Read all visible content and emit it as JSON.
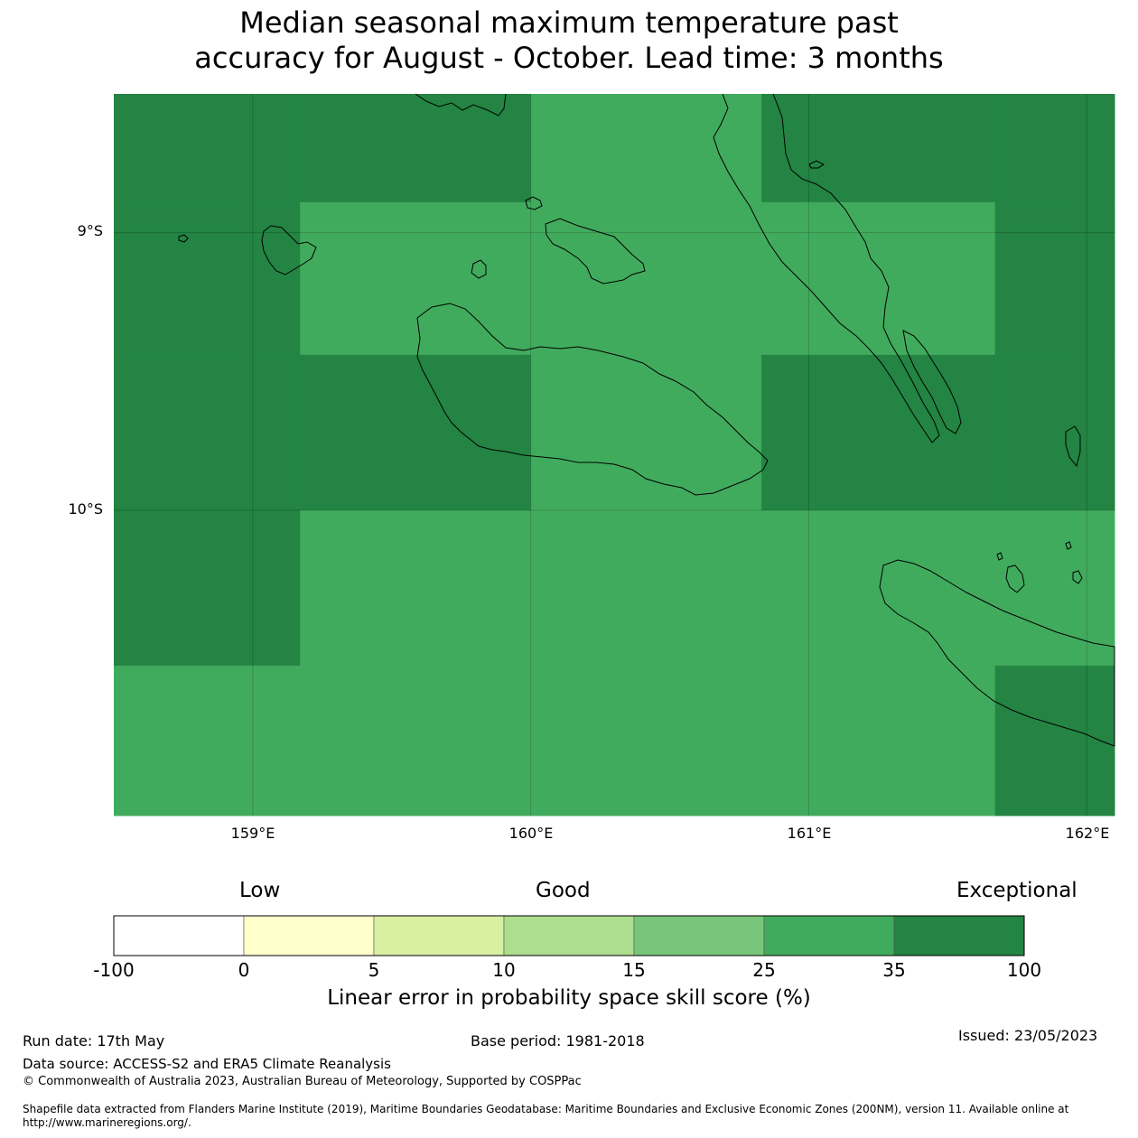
{
  "title_line1": "Median seasonal maximum temperature past",
  "title_line2": "accuracy for August - October. Lead time: 3 months",
  "map": {
    "lat_labels": [
      "9°S",
      "10°S"
    ],
    "lon_labels": [
      "159°E",
      "160°E",
      "161°E",
      "162°E"
    ],
    "extent": {
      "lon_min": 158.5,
      "lon_max": 162.1,
      "lat_min": -11.1,
      "lat_max": -8.5
    },
    "grid_cells": [
      {
        "lon0": 158.5,
        "lon1": 159.17,
        "lat0": -8.5,
        "lat1": -8.89,
        "category": 6
      },
      {
        "lon0": 159.17,
        "lon1": 160.0,
        "lat0": -8.5,
        "lat1": -8.89,
        "category": 6
      },
      {
        "lon0": 160.0,
        "lon1": 160.83,
        "lat0": -8.5,
        "lat1": -8.89,
        "category": 5
      },
      {
        "lon0": 160.83,
        "lon1": 161.67,
        "lat0": -8.5,
        "lat1": -8.89,
        "category": 6
      },
      {
        "lon0": 161.67,
        "lon1": 162.1,
        "lat0": -8.5,
        "lat1": -8.89,
        "category": 6
      },
      {
        "lon0": 158.5,
        "lon1": 159.17,
        "lat0": -8.89,
        "lat1": -9.44,
        "category": 6
      },
      {
        "lon0": 159.17,
        "lon1": 160.0,
        "lat0": -8.89,
        "lat1": -9.44,
        "category": 5
      },
      {
        "lon0": 160.0,
        "lon1": 160.83,
        "lat0": -8.89,
        "lat1": -9.44,
        "category": 5
      },
      {
        "lon0": 160.83,
        "lon1": 161.67,
        "lat0": -8.89,
        "lat1": -9.44,
        "category": 5
      },
      {
        "lon0": 161.67,
        "lon1": 162.1,
        "lat0": -8.89,
        "lat1": -9.44,
        "category": 6
      },
      {
        "lon0": 158.5,
        "lon1": 159.17,
        "lat0": -9.44,
        "lat1": -10.0,
        "category": 6
      },
      {
        "lon0": 159.17,
        "lon1": 160.0,
        "lat0": -9.44,
        "lat1": -10.0,
        "category": 6
      },
      {
        "lon0": 160.0,
        "lon1": 160.83,
        "lat0": -9.44,
        "lat1": -10.0,
        "category": 5
      },
      {
        "lon0": 160.83,
        "lon1": 161.67,
        "lat0": -9.44,
        "lat1": -10.0,
        "category": 6
      },
      {
        "lon0": 161.67,
        "lon1": 162.1,
        "lat0": -9.44,
        "lat1": -10.0,
        "category": 6
      },
      {
        "lon0": 158.5,
        "lon1": 159.17,
        "lat0": -10.0,
        "lat1": -10.56,
        "category": 6
      },
      {
        "lon0": 159.17,
        "lon1": 160.0,
        "lat0": -10.0,
        "lat1": -10.56,
        "category": 5
      },
      {
        "lon0": 160.0,
        "lon1": 160.83,
        "lat0": -10.0,
        "lat1": -10.56,
        "category": 5
      },
      {
        "lon0": 160.83,
        "lon1": 161.67,
        "lat0": -10.0,
        "lat1": -10.56,
        "category": 5
      },
      {
        "lon0": 161.67,
        "lon1": 162.1,
        "lat0": -10.0,
        "lat1": -10.56,
        "category": 5
      },
      {
        "lon0": 158.5,
        "lon1": 159.17,
        "lat0": -10.56,
        "lat1": -11.1,
        "category": 5
      },
      {
        "lon0": 159.17,
        "lon1": 160.0,
        "lat0": -10.56,
        "lat1": -11.1,
        "category": 5
      },
      {
        "lon0": 160.0,
        "lon1": 160.83,
        "lat0": -10.56,
        "lat1": -11.1,
        "category": 5
      },
      {
        "lon0": 160.83,
        "lon1": 161.67,
        "lat0": -10.56,
        "lat1": -11.1,
        "category": 5
      },
      {
        "lon0": 161.67,
        "lon1": 162.1,
        "lat0": -10.56,
        "lat1": -11.1,
        "category": 6
      }
    ]
  },
  "colorbar": {
    "words": {
      "low": "Low",
      "good": "Good",
      "exceptional": "Exceptional"
    },
    "ticks": [
      "-100",
      "0",
      "5",
      "10",
      "15",
      "25",
      "35",
      "100"
    ],
    "colors": [
      "#ffffff",
      "#ffffcc",
      "#d9f0a3",
      "#addd8e",
      "#78c679",
      "#41ab5d",
      "#238443"
    ],
    "label": "Linear error in probability space skill score (%)"
  },
  "footer": {
    "run_date": "Run date: 17th May",
    "base_period": "Base period: 1981-2018",
    "issued": "Issued: 23/05/2023",
    "data_source": "Data source: ACCESS-S2 and ERA5 Climate Reanalysis",
    "copyright": "© Commonwealth of Australia 2023, Australian Bureau of Meteorology, Supported by COSPPac",
    "shapefile": "Shapefile data extracted from Flanders Marine Institute (2019), Maritime Boundaries Geodatabase: Maritime Boundaries and Exclusive Economic Zones (200NM), version 11. Available online at http://www.marineregions.org/."
  }
}
